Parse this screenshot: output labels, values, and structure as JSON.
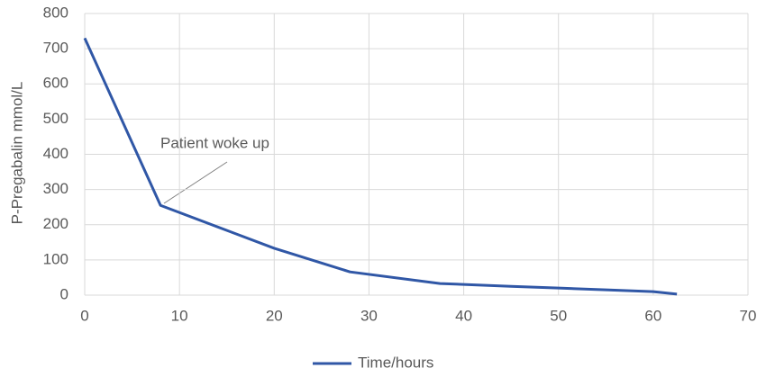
{
  "chart_data": {
    "type": "line",
    "y_label": "P-Pregabalin mmol/L",
    "annotation": "Patient woke up",
    "x": [
      0,
      8,
      20,
      28,
      37.5,
      45,
      50,
      55,
      60,
      62.5
    ],
    "series": [
      {
        "name": "Time/hours",
        "color": "#3057a6",
        "values": [
          730,
          255,
          133,
          66,
          33,
          25,
          20,
          15,
          10,
          3
        ]
      }
    ],
    "xlim": [
      0,
      70
    ],
    "xticks": [
      0,
      10,
      20,
      30,
      40,
      50,
      60,
      70
    ],
    "ylim": [
      0,
      800
    ],
    "yticks": [
      0,
      100,
      200,
      300,
      400,
      500,
      600,
      700,
      800
    ],
    "grid": true
  }
}
